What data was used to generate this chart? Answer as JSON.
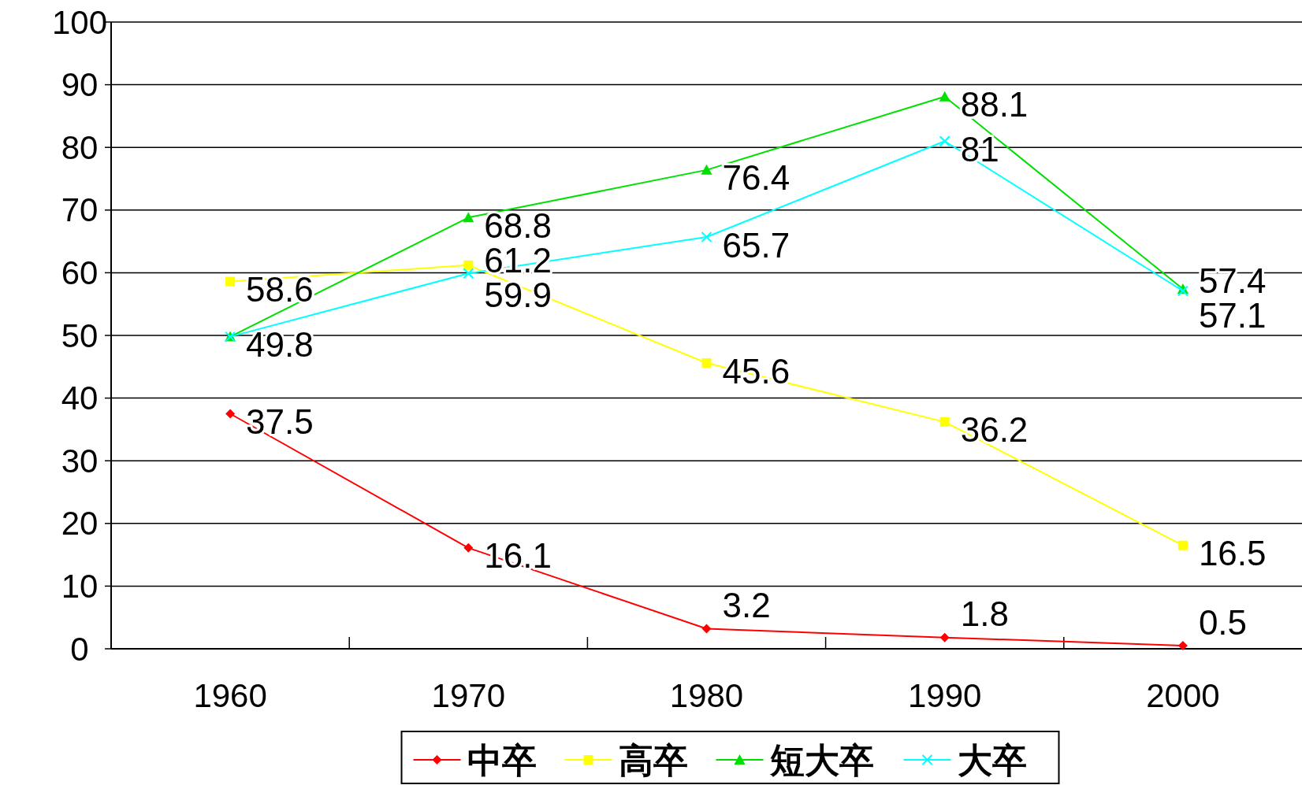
{
  "chart_data": {
    "type": "line",
    "categories": [
      "1960",
      "1970",
      "1980",
      "1990",
      "2000"
    ],
    "series": [
      {
        "name": "中卒",
        "color": "#ff0000",
        "marker": "diamond",
        "values": [
          37.5,
          16.1,
          3.2,
          1.8,
          0.5
        ]
      },
      {
        "name": "高卒",
        "color": "#ffff00",
        "marker": "square",
        "values": [
          58.6,
          61.2,
          45.6,
          36.2,
          16.5
        ]
      },
      {
        "name": "短大卒",
        "color": "#00e000",
        "marker": "triangle",
        "values": [
          49.8,
          68.8,
          76.4,
          88.1,
          57.4
        ]
      },
      {
        "name": "大卒",
        "color": "#00ffff",
        "marker": "cross",
        "values": [
          49.8,
          59.9,
          65.7,
          81,
          57.1
        ],
        "value_labels": [
          null,
          "59.9",
          "65.7",
          "81",
          "57.1"
        ]
      }
    ],
    "ylim": [
      0,
      100
    ],
    "yticks": [
      0,
      10,
      20,
      30,
      40,
      50,
      60,
      70,
      80,
      90,
      100
    ],
    "grid": "y",
    "legend": "bottom",
    "data_labels": true
  }
}
